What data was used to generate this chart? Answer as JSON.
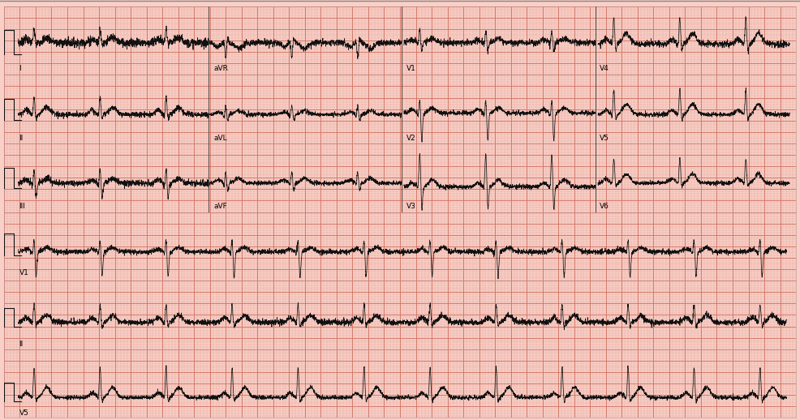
{
  "background_color": "#f8d0c8",
  "grid_minor_color": "#e8a898",
  "grid_major_color": "#d07060",
  "ecg_color": "#111111",
  "fig_bg": "#f8d0c8",
  "rows": 6,
  "row_labels_left": [
    "I",
    "II",
    "III",
    "V1",
    "II",
    "V5"
  ],
  "col_labels_row0": [
    "I",
    "aVR",
    "V1",
    "V4"
  ],
  "col_labels_row1": [
    "II",
    "aVL",
    "V2",
    "V5"
  ],
  "col_labels_row2": [
    "III",
    "aVF",
    "V3",
    "V6"
  ],
  "hr": 72,
  "noise": 0.022
}
